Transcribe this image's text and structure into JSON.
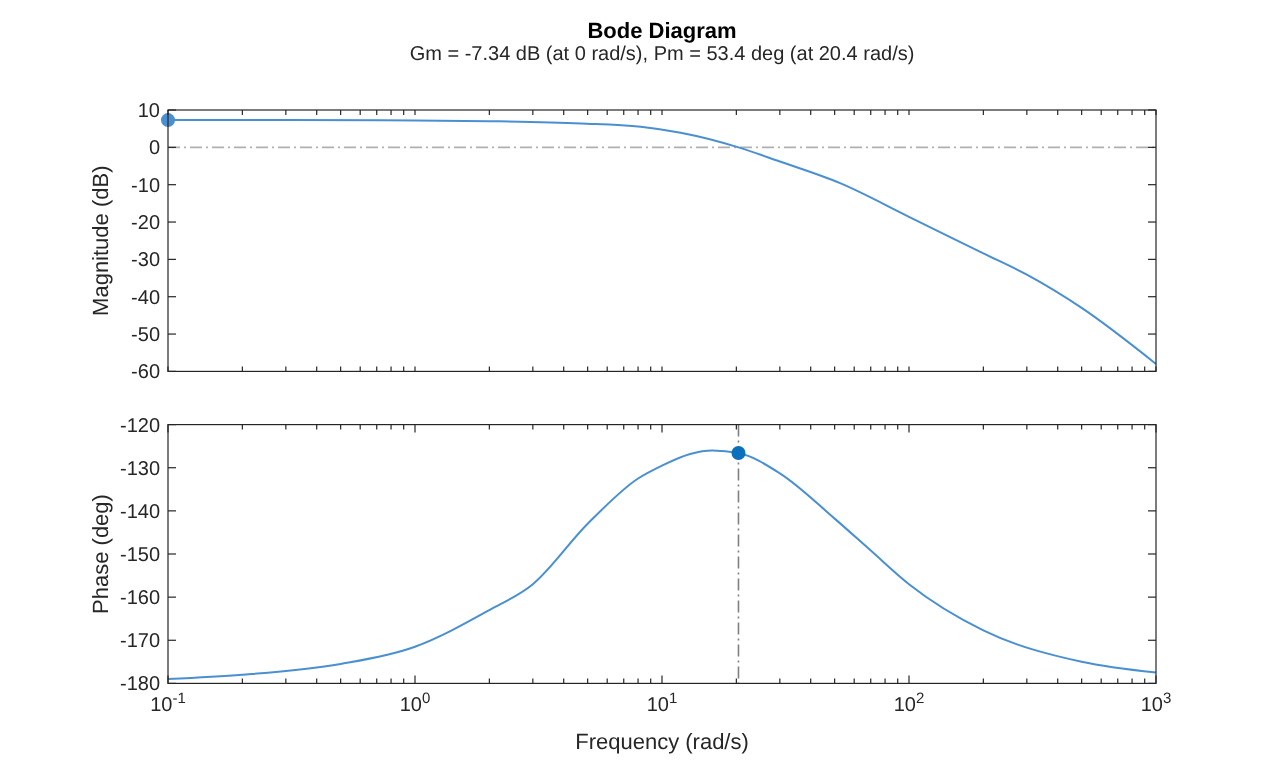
{
  "chart_data": [
    {
      "type": "line",
      "title": "Bode Diagram",
      "subtitle": "Gm = -7.34 dB (at 0 rad/s),  Pm = 53.4 deg (at 20.4 rad/s)",
      "ylabel": "Magnitude (dB)",
      "log": "x",
      "tick_labels": "y",
      "grid": false,
      "xlim": [
        0.1,
        1000
      ],
      "ylim": [
        -60,
        10
      ],
      "yticks": [
        -60,
        -50,
        -40,
        -30,
        -20,
        -10,
        0,
        10
      ],
      "xticks": [
        {
          "value": 0.1,
          "label": null
        },
        {
          "value": 0.2,
          "label": null
        },
        {
          "value": 0.3,
          "label": null
        },
        {
          "value": 0.4,
          "label": null
        },
        {
          "value": 0.5,
          "label": null
        },
        {
          "value": 0.6,
          "label": null
        },
        {
          "value": 0.7,
          "label": null
        },
        {
          "value": 0.8,
          "label": null
        },
        {
          "value": 0.9,
          "label": null
        },
        {
          "value": 1,
          "label": null
        },
        {
          "value": 2,
          "label": null
        },
        {
          "value": 3,
          "label": null
        },
        {
          "value": 4,
          "label": null
        },
        {
          "value": 5,
          "label": null
        },
        {
          "value": 6,
          "label": null
        },
        {
          "value": 7,
          "label": null
        },
        {
          "value": 8,
          "label": null
        },
        {
          "value": 9,
          "label": null
        },
        {
          "value": 10,
          "label": null
        },
        {
          "value": 20,
          "label": null
        },
        {
          "value": 30,
          "label": null
        },
        {
          "value": 40,
          "label": null
        },
        {
          "value": 50,
          "label": null
        },
        {
          "value": 60,
          "label": null
        },
        {
          "value": 70,
          "label": null
        },
        {
          "value": 80,
          "label": null
        },
        {
          "value": 90,
          "label": null
        },
        {
          "value": 100,
          "label": null
        },
        {
          "value": 200,
          "label": null
        },
        {
          "value": 300,
          "label": null
        },
        {
          "value": 400,
          "label": null
        },
        {
          "value": 500,
          "label": null
        },
        {
          "value": 600,
          "label": null
        },
        {
          "value": 700,
          "label": null
        },
        {
          "value": 800,
          "label": null
        },
        {
          "value": 900,
          "label": null
        },
        {
          "value": 1000,
          "label": null
        }
      ],
      "ref_lines": [
        {
          "axis": "y",
          "value": 0,
          "color": "#b0b0b0"
        }
      ],
      "series": [
        {
          "type": "line",
          "color": "#4a90d0",
          "x": [
            0.1,
            0.3,
            1,
            2,
            4.7,
            8.2,
            11.9,
            20.4,
            30,
            52.6,
            100,
            200,
            300,
            500,
            1000
          ],
          "values": [
            7.3,
            7.3,
            7.2,
            7.0,
            6.4,
            5.5,
            3.9,
            0,
            -3.8,
            -9.6,
            -18.6,
            -28.4,
            -34.1,
            -43,
            -58
          ]
        },
        {
          "type": "scatter",
          "marker": "circle",
          "color": "#4a90d0",
          "x": [
            0.1
          ],
          "values": [
            7.3
          ]
        }
      ]
    },
    {
      "type": "line",
      "ylabel": "Phase (deg)",
      "xlabel": "Frequency (rad/s)",
      "log": "x",
      "grid": false,
      "xlim": [
        0.1,
        1000
      ],
      "ylim": [
        -180,
        -120
      ],
      "yticks": [
        -180,
        -170,
        -160,
        -150,
        -140,
        -130,
        -120
      ],
      "xticks": [
        {
          "value": 0.1,
          "label": "10$^{-1}$"
        },
        {
          "value": 0.2,
          "label": null
        },
        {
          "value": 0.3,
          "label": null
        },
        {
          "value": 0.4,
          "label": null
        },
        {
          "value": 0.5,
          "label": null
        },
        {
          "value": 0.6,
          "label": null
        },
        {
          "value": 0.7,
          "label": null
        },
        {
          "value": 0.8,
          "label": null
        },
        {
          "value": 0.9,
          "label": null
        },
        {
          "value": 1,
          "label": "10$^{0}$"
        },
        {
          "value": 2,
          "label": null
        },
        {
          "value": 3,
          "label": null
        },
        {
          "value": 4,
          "label": null
        },
        {
          "value": 5,
          "label": null
        },
        {
          "value": 6,
          "label": null
        },
        {
          "value": 7,
          "label": null
        },
        {
          "value": 8,
          "label": null
        },
        {
          "value": 9,
          "label": null
        },
        {
          "value": 10,
          "label": "10$^{1}$"
        },
        {
          "value": 20,
          "label": null
        },
        {
          "value": 30,
          "label": null
        },
        {
          "value": 40,
          "label": null
        },
        {
          "value": 50,
          "label": null
        },
        {
          "value": 60,
          "label": null
        },
        {
          "value": 70,
          "label": null
        },
        {
          "value": 80,
          "label": null
        },
        {
          "value": 90,
          "label": null
        },
        {
          "value": 100,
          "label": "10$^{2}$"
        },
        {
          "value": 200,
          "label": null
        },
        {
          "value": 300,
          "label": null
        },
        {
          "value": 400,
          "label": null
        },
        {
          "value": 500,
          "label": null
        },
        {
          "value": 600,
          "label": null
        },
        {
          "value": 700,
          "label": null
        },
        {
          "value": 800,
          "label": null
        },
        {
          "value": 900,
          "label": null
        },
        {
          "value": 1000,
          "label": "10$^{3}$"
        }
      ],
      "ref_lines": [
        {
          "axis": "x",
          "value": 20.4,
          "color": "#808080"
        }
      ],
      "series": [
        {
          "type": "line",
          "color": "#4a90d0",
          "x": [
            0.1,
            0.2,
            0.5,
            1,
            2,
            3,
            5,
            8,
            10,
            13,
            16,
            20.4,
            30,
            50,
            70,
            100,
            200,
            500,
            1000
          ],
          "values": [
            -179,
            -178,
            -175.5,
            -171.5,
            -163,
            -157,
            -143,
            -132.5,
            -129.5,
            -126.8,
            -126,
            -126.6,
            -131.3,
            -141.8,
            -149.2,
            -157,
            -167.7,
            -175,
            -177.5
          ]
        },
        {
          "type": "scatter",
          "marker": "circle",
          "color": "#0a6fbd",
          "x": [
            20.4
          ],
          "values": [
            -126.6
          ]
        }
      ]
    }
  ]
}
